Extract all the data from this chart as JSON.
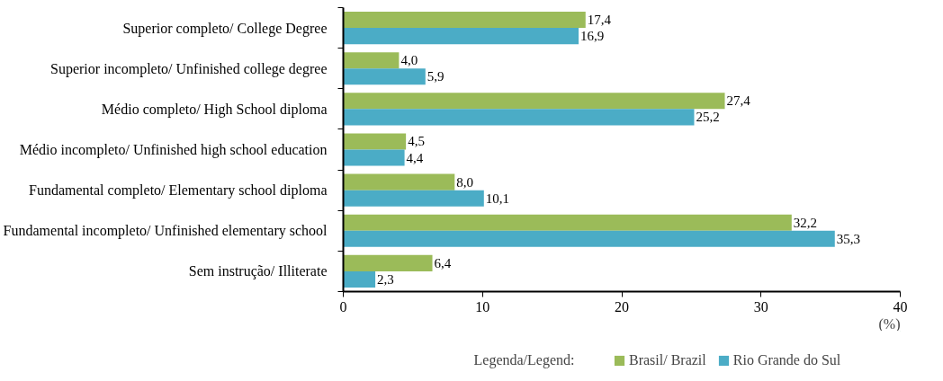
{
  "chart_data": {
    "type": "bar",
    "orientation": "horizontal",
    "categories": [
      "Superior completo/ College Degree",
      "Superior incompleto/ Unfinished college degree",
      "Médio completo/ High School diploma",
      "Médio incompleto/ Unfinished high school education",
      "Fundamental completo/ Elementary school diploma",
      "Fundamental incompleto/ Unfinished elementary school",
      "Sem instrução/ Illiterate"
    ],
    "series": [
      {
        "name": "Brasil/ Brazil",
        "color": "#9bbb59",
        "values": [
          17.4,
          4.0,
          27.4,
          4.5,
          8.0,
          32.2,
          6.4
        ],
        "value_labels": [
          "17,4",
          "4,0",
          "27,4",
          "4,5",
          "8,0",
          "32,2",
          "6,4"
        ]
      },
      {
        "name": "Rio Grande do Sul",
        "color": "#4bacc6",
        "values": [
          16.9,
          5.9,
          25.2,
          4.4,
          10.1,
          35.3,
          2.3
        ],
        "value_labels": [
          "16,9",
          "5,9",
          "25,2",
          "4,4",
          "10,1",
          "35,3",
          "2,3"
        ]
      }
    ],
    "xlabel": "(%)",
    "legend_title": "Legenda/Legend:",
    "xlim": [
      0,
      40
    ],
    "xticks": [
      0,
      10,
      20,
      30,
      40
    ],
    "grid": false,
    "legend": "bottom"
  }
}
